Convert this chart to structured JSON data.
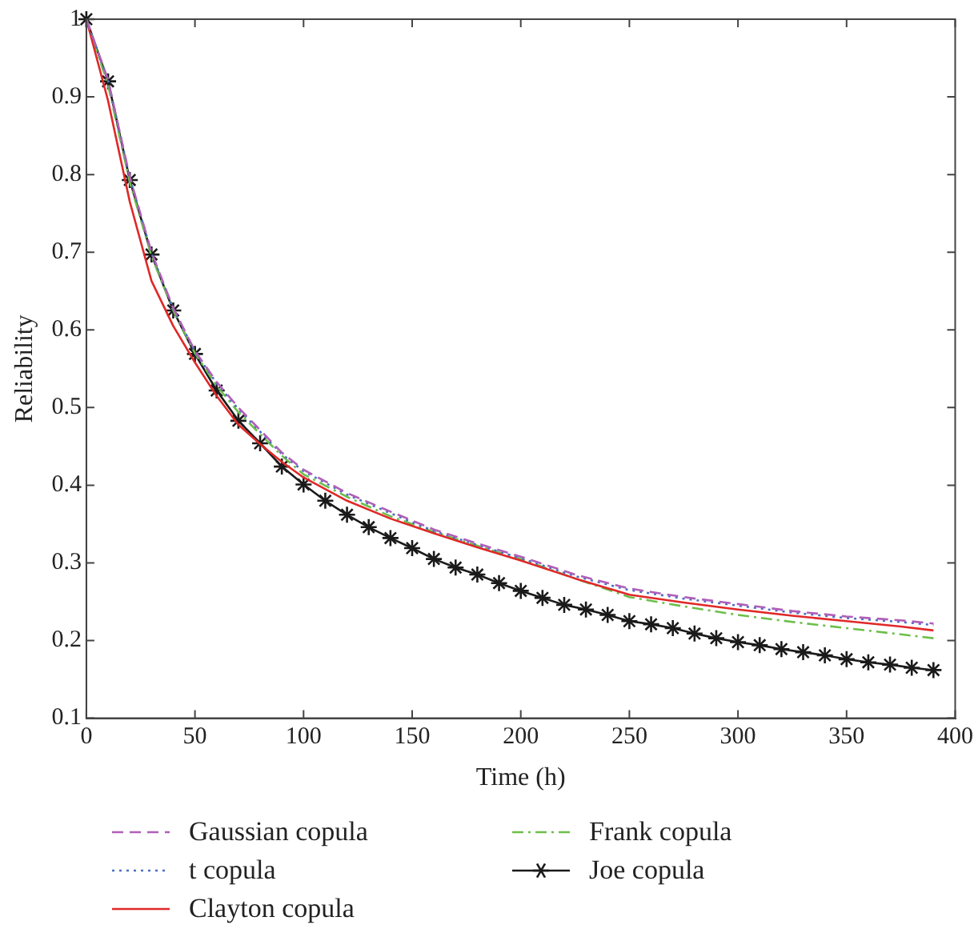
{
  "chart_data": {
    "type": "line",
    "xlabel": "Time (h)",
    "ylabel": "Reliability",
    "xlim": [
      0,
      400
    ],
    "ylim": [
      0.1,
      1
    ],
    "xticks": [
      0,
      50,
      100,
      150,
      200,
      250,
      300,
      350,
      400
    ],
    "yticks": [
      0.1,
      0.2,
      0.3,
      0.4,
      0.5,
      0.6,
      0.7,
      0.8,
      0.9,
      1
    ],
    "grid": false,
    "legend": "bottom",
    "series": [
      {
        "name": "Gaussian copula",
        "color": "#b05fb8",
        "line_style": "dashed",
        "marker": "none",
        "x": [
          0,
          10,
          20,
          30,
          40,
          50,
          60,
          70,
          80,
          90,
          100,
          120,
          140,
          160,
          180,
          200,
          225,
          250,
          275,
          300,
          325,
          350,
          375,
          390
        ],
        "values": [
          1,
          0.922,
          0.797,
          0.7,
          0.628,
          0.573,
          0.533,
          0.5,
          0.471,
          0.442,
          0.42,
          0.39,
          0.366,
          0.343,
          0.325,
          0.308,
          0.285,
          0.267,
          0.256,
          0.247,
          0.238,
          0.231,
          0.226,
          0.222
        ]
      },
      {
        "name": "t copula",
        "color": "#4a6fc0",
        "line_style": "dotted",
        "marker": "none",
        "x": [
          0,
          10,
          20,
          30,
          40,
          50,
          60,
          70,
          80,
          90,
          100,
          120,
          140,
          160,
          180,
          200,
          225,
          250,
          275,
          300,
          325,
          350,
          375,
          390
        ],
        "values": [
          1,
          0.921,
          0.796,
          0.699,
          0.627,
          0.572,
          0.531,
          0.498,
          0.469,
          0.44,
          0.418,
          0.388,
          0.364,
          0.341,
          0.323,
          0.306,
          0.283,
          0.265,
          0.254,
          0.245,
          0.236,
          0.229,
          0.224,
          0.22
        ]
      },
      {
        "name": "Clayton copula",
        "color": "#e02828",
        "line_style": "solid",
        "marker": "none",
        "x": [
          0,
          10,
          20,
          30,
          40,
          50,
          60,
          70,
          80,
          90,
          100,
          120,
          140,
          160,
          180,
          200,
          225,
          250,
          275,
          300,
          325,
          350,
          375,
          390
        ],
        "values": [
          1,
          0.895,
          0.765,
          0.663,
          0.605,
          0.558,
          0.515,
          0.478,
          0.453,
          0.43,
          0.41,
          0.38,
          0.357,
          0.338,
          0.32,
          0.303,
          0.28,
          0.259,
          0.249,
          0.24,
          0.232,
          0.225,
          0.218,
          0.213
        ]
      },
      {
        "name": "Frank copula",
        "color": "#6cbf4a",
        "line_style": "dashdot",
        "marker": "none",
        "x": [
          0,
          10,
          20,
          30,
          40,
          50,
          60,
          70,
          80,
          90,
          100,
          120,
          140,
          160,
          180,
          200,
          225,
          250,
          275,
          300,
          325,
          350,
          375,
          390
        ],
        "values": [
          1,
          0.915,
          0.79,
          0.695,
          0.625,
          0.57,
          0.528,
          0.494,
          0.466,
          0.438,
          0.414,
          0.385,
          0.36,
          0.34,
          0.322,
          0.305,
          0.28,
          0.256,
          0.244,
          0.233,
          0.224,
          0.216,
          0.208,
          0.203
        ]
      },
      {
        "name": "Joe copula",
        "color": "#1a1a1a",
        "line_style": "solid",
        "marker": "cross",
        "x": [
          0,
          10,
          20,
          30,
          40,
          50,
          60,
          70,
          80,
          90,
          100,
          110,
          120,
          130,
          140,
          150,
          160,
          170,
          180,
          190,
          200,
          210,
          220,
          230,
          240,
          250,
          260,
          270,
          280,
          290,
          300,
          310,
          320,
          330,
          340,
          350,
          360,
          370,
          380,
          390
        ],
        "values": [
          1,
          0.92,
          0.793,
          0.697,
          0.625,
          0.569,
          0.522,
          0.483,
          0.454,
          0.424,
          0.401,
          0.38,
          0.362,
          0.346,
          0.332,
          0.319,
          0.305,
          0.294,
          0.285,
          0.274,
          0.264,
          0.255,
          0.246,
          0.24,
          0.233,
          0.225,
          0.221,
          0.216,
          0.209,
          0.203,
          0.198,
          0.194,
          0.189,
          0.185,
          0.181,
          0.176,
          0.172,
          0.169,
          0.165,
          0.162
        ]
      }
    ]
  }
}
